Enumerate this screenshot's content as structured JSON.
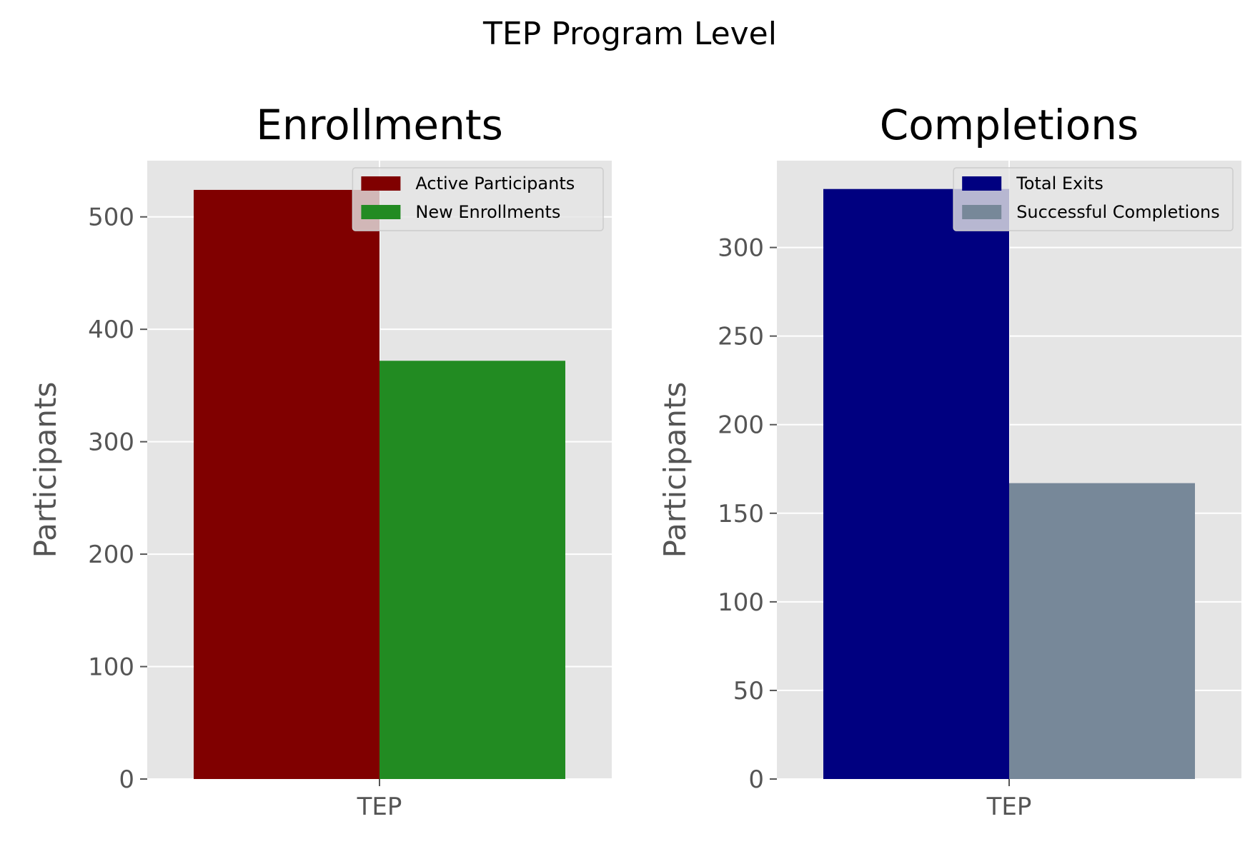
{
  "suptitle": "TEP Program Level",
  "chart_data": [
    {
      "type": "bar",
      "title": "Enrollments",
      "xlabel": "",
      "ylabel": "Participants",
      "categories": [
        "TEP"
      ],
      "ylim": [
        0,
        550
      ],
      "yticks": [
        0,
        100,
        200,
        300,
        400,
        500
      ],
      "grid": true,
      "legend_position": "top-right",
      "series": [
        {
          "name": "Active Participants",
          "values": [
            524
          ],
          "color": "#800000"
        },
        {
          "name": "New Enrollments",
          "values": [
            372
          ],
          "color": "#228b22"
        }
      ]
    },
    {
      "type": "bar",
      "title": "Completions",
      "xlabel": "",
      "ylabel": "Participants",
      "categories": [
        "TEP"
      ],
      "ylim": [
        0,
        349
      ],
      "yticks": [
        0,
        50,
        100,
        150,
        200,
        250,
        300
      ],
      "grid": true,
      "legend_position": "top-right",
      "series": [
        {
          "name": "Total Exits",
          "values": [
            333
          ],
          "color": "#000080"
        },
        {
          "name": "Successful Completions",
          "values": [
            167
          ],
          "color": "#778899"
        }
      ]
    }
  ]
}
